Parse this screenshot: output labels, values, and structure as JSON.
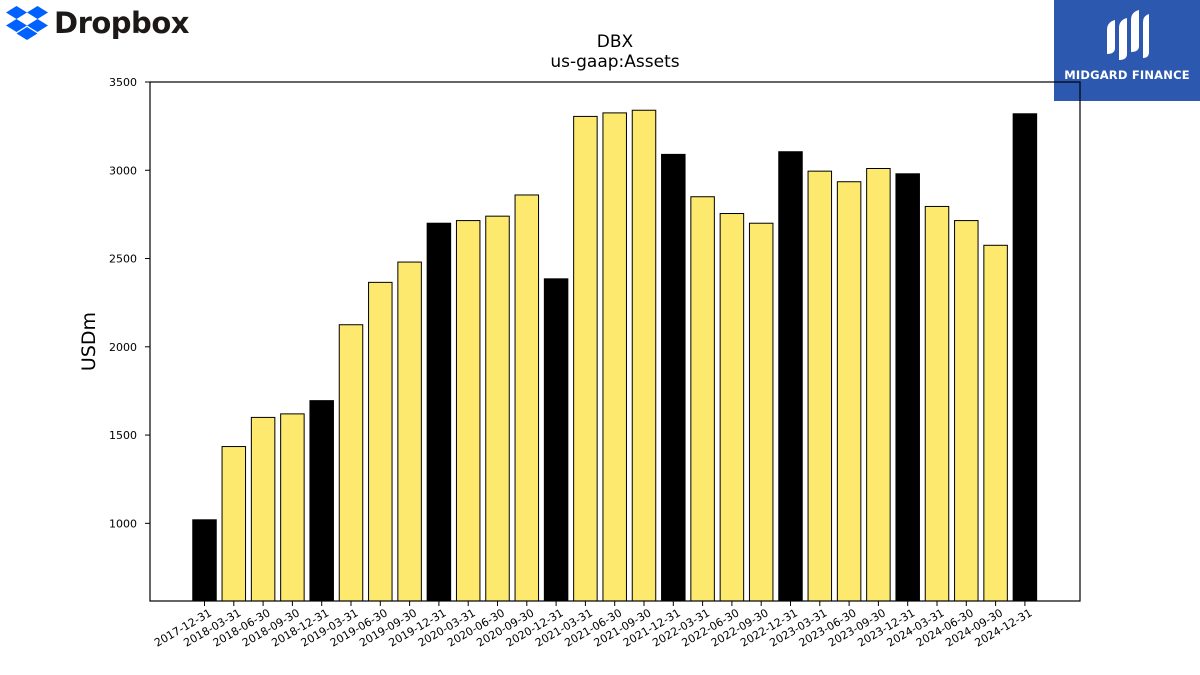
{
  "logos": {
    "left": {
      "text": "Dropbox",
      "icon": "dropbox-icon",
      "color": "#0061fe"
    },
    "right": {
      "text": "MIDGARD FINANCE",
      "icon": "midgard-m-icon",
      "bg": "#2d58b0"
    }
  },
  "chart_data": {
    "type": "bar",
    "title": "DBX",
    "subtitle": "us-gaap:Assets",
    "ylabel": "USDm",
    "xlabel": "",
    "ylim": [
      560,
      3500
    ],
    "yticks": [
      1000,
      1500,
      2000,
      2500,
      3000,
      3500
    ],
    "grid": false,
    "colors": {
      "annual": "#000000",
      "quarterly": "#fde96e",
      "edge": "#000000"
    },
    "categories": [
      "2017-12-31",
      "2018-03-31",
      "2018-06-30",
      "2018-09-30",
      "2018-12-31",
      "2019-03-31",
      "2019-06-30",
      "2019-09-30",
      "2019-12-31",
      "2020-03-31",
      "2020-06-30",
      "2020-09-30",
      "2020-12-31",
      "2021-03-31",
      "2021-06-30",
      "2021-09-30",
      "2021-12-31",
      "2022-03-31",
      "2022-06-30",
      "2022-09-30",
      "2022-12-31",
      "2023-03-31",
      "2023-06-30",
      "2023-09-30",
      "2023-12-31",
      "2024-03-31",
      "2024-06-30",
      "2024-09-30",
      "2024-12-31"
    ],
    "values": [
      1020,
      1435,
      1600,
      1620,
      1695,
      2125,
      2365,
      2480,
      2700,
      2715,
      2740,
      2860,
      2385,
      3305,
      3325,
      3340,
      3090,
      2850,
      2755,
      2700,
      3105,
      2995,
      2935,
      3010,
      2980,
      2795,
      2715,
      2575,
      3320
    ]
  }
}
